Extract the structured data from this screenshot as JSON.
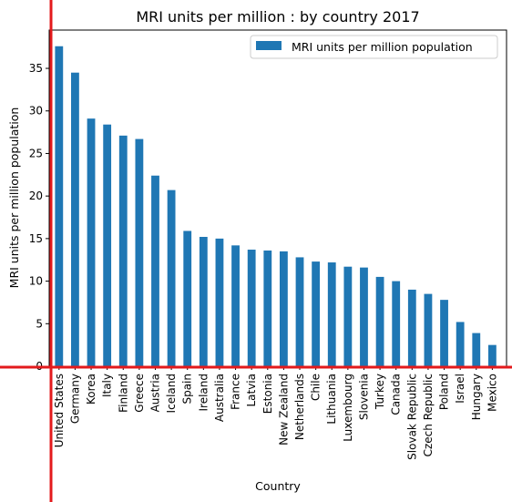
{
  "chart_data": {
    "type": "bar",
    "title": "MRI units per million : by country 2017",
    "xlabel": "Country",
    "ylabel": "MRI units per million population",
    "categories": [
      "United States",
      "Germany",
      "Korea",
      "Italy",
      "Finland",
      "Greece",
      "Austria",
      "Iceland",
      "Spain",
      "Ireland",
      "Australia",
      "France",
      "Latvia",
      "Estonia",
      "New Zealand",
      "Netherlands",
      "Chile",
      "Lithuania",
      "Luxembourg",
      "Slovenia",
      "Turkey",
      "Canada",
      "Slovak Republic",
      "Czech Republic",
      "Poland",
      "Israel",
      "Hungary",
      "Mexico"
    ],
    "series": [
      {
        "name": "MRI units per million population",
        "color": "#1f77b4",
        "values": [
          37.6,
          34.5,
          29.1,
          28.4,
          27.1,
          26.7,
          22.4,
          20.7,
          15.9,
          15.2,
          15.0,
          14.2,
          13.7,
          13.6,
          13.5,
          12.8,
          12.3,
          12.2,
          11.7,
          11.6,
          10.5,
          10.0,
          9.0,
          8.5,
          7.8,
          5.2,
          3.9,
          2.5
        ]
      }
    ],
    "yticks": [
      0,
      5,
      10,
      15,
      20,
      25,
      30,
      35
    ],
    "ylim": [
      0,
      39.5
    ],
    "grid": false,
    "legend": "top-right",
    "overlay_color": "#e31a1c"
  }
}
